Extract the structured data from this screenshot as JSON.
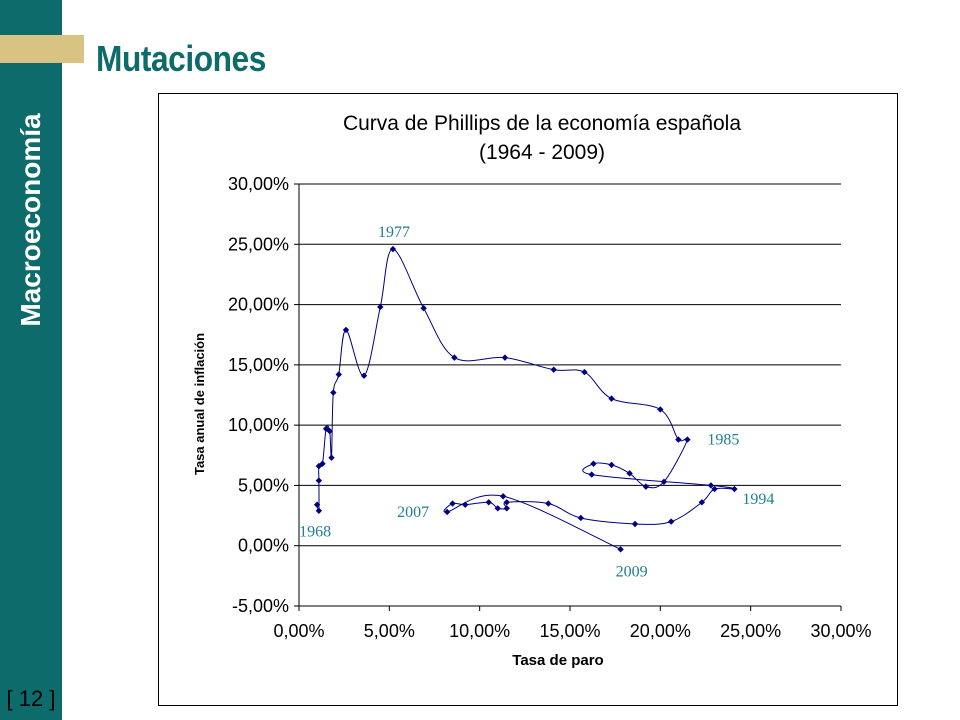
{
  "sidebar": {
    "title": "Macroeconomía",
    "page_number": "[ 12 ]"
  },
  "slide": {
    "title": "Mutaciones"
  },
  "colors": {
    "teal": "#0d6b6b",
    "accent": "#d8c383",
    "series": "#000080",
    "annotation": "#1f7f8f"
  },
  "chart_data": {
    "type": "scatter",
    "title": "Curva de Phillips de la economía española",
    "subtitle": "(1964 - 2009)",
    "xlabel": "Tasa de paro",
    "ylabel": "Tasa anual de inflación",
    "xlim": [
      0,
      30
    ],
    "ylim": [
      -5,
      30
    ],
    "x_ticks": [
      0,
      5,
      10,
      15,
      20,
      25,
      30
    ],
    "y_ticks": [
      -5,
      0,
      5,
      10,
      15,
      20,
      25,
      30
    ],
    "x_tick_labels": [
      "0,00%",
      "5,00%",
      "10,00%",
      "15,00%",
      "20,00%",
      "25,00%",
      "30,00%"
    ],
    "y_tick_labels": [
      "-5,00%",
      "0,00%",
      "5,00%",
      "10,00%",
      "15,00%",
      "20,00%",
      "25,00%",
      "30,00%"
    ],
    "grid": "horizontal",
    "legend": "none",
    "markers": "diamond",
    "smoothed_line": true,
    "series": [
      {
        "points": [
          [
            1.0,
            3.4
          ],
          [
            1.1,
            2.9
          ],
          [
            1.1,
            5.4
          ],
          [
            1.1,
            6.6
          ],
          [
            1.3,
            6.8
          ],
          [
            1.5,
            9.7
          ],
          [
            1.7,
            9.5
          ],
          [
            1.8,
            7.3
          ],
          [
            1.9,
            12.7
          ],
          [
            2.2,
            14.2
          ],
          [
            2.6,
            17.9
          ],
          [
            3.6,
            14.1
          ],
          [
            4.5,
            19.8
          ],
          [
            5.2,
            24.6
          ],
          [
            6.9,
            19.7
          ],
          [
            8.6,
            15.6
          ],
          [
            11.4,
            15.6
          ],
          [
            14.1,
            14.6
          ],
          [
            15.8,
            14.4
          ],
          [
            17.3,
            12.2
          ],
          [
            20.0,
            11.3
          ],
          [
            21.0,
            8.8
          ],
          [
            21.5,
            8.8
          ],
          [
            20.2,
            5.3
          ],
          [
            19.2,
            4.9
          ],
          [
            18.3,
            6.0
          ],
          [
            17.3,
            6.7
          ],
          [
            16.3,
            6.8
          ],
          [
            16.2,
            5.9
          ],
          [
            22.8,
            5.0
          ],
          [
            24.1,
            4.7
          ],
          [
            23.0,
            4.7
          ],
          [
            22.3,
            3.6
          ],
          [
            20.6,
            2.0
          ],
          [
            18.6,
            1.8
          ],
          [
            15.6,
            2.3
          ],
          [
            13.8,
            3.5
          ],
          [
            11.5,
            3.6
          ],
          [
            11.5,
            3.1
          ],
          [
            11.0,
            3.1
          ],
          [
            10.5,
            3.6
          ],
          [
            9.2,
            3.4
          ],
          [
            8.5,
            3.5
          ],
          [
            8.2,
            2.8
          ],
          [
            11.3,
            4.1
          ],
          [
            17.8,
            -0.3
          ]
        ]
      }
    ],
    "annotations": [
      {
        "text": "1977",
        "x": 5.2,
        "y": 24.6
      },
      {
        "text": "1985",
        "x": 21.5,
        "y": 8.8
      },
      {
        "text": "1994",
        "x": 24.1,
        "y": 4.7
      },
      {
        "text": "2007",
        "x": 8.2,
        "y": 2.8
      },
      {
        "text": "1968",
        "x": 1.0,
        "y": 3.4
      },
      {
        "text": "2009",
        "x": 17.8,
        "y": -0.3
      }
    ]
  }
}
